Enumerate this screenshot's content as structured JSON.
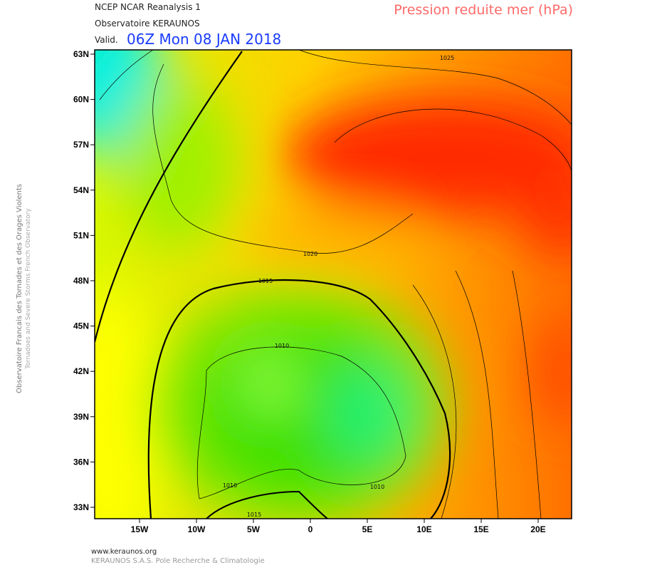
{
  "header": {
    "source": "NCEP NCAR Reanalysis 1",
    "observatory": "Observatoire KERAUNOS",
    "valid_prefix": "Valid.",
    "valid_time": "06Z Mon 08 JAN 2018",
    "field": "Pression reduite mer (hPa)"
  },
  "side": {
    "line1": "Observatoire Francais des Tornades et des Orages Violents",
    "line2": "Tornadoes and Severe Storms French Observatory"
  },
  "map": {
    "lat_labels": [
      "63N",
      "60N",
      "57N",
      "54N",
      "51N",
      "48N",
      "45N",
      "42N",
      "39N",
      "36N",
      "33N"
    ],
    "lon_labels": [
      "15W",
      "10W",
      "5W",
      "0",
      "5E",
      "10E",
      "15E",
      "20E"
    ],
    "contour_labels": [
      "1025",
      "1020",
      "1015",
      "1010",
      "1010",
      "1010",
      "1015"
    ]
  },
  "footer": {
    "site": "www.keraunos.org",
    "company": "KERAUNOS S.A.S. Pole Recherche & Climatologie"
  }
}
